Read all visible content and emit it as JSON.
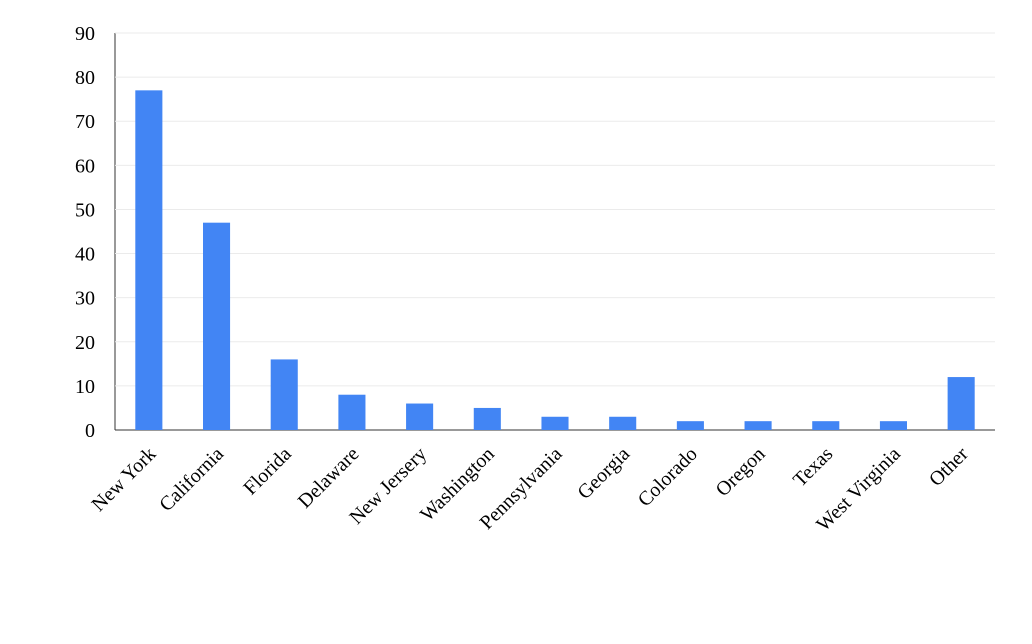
{
  "chart_data": {
    "type": "bar",
    "categories": [
      "New York",
      "California",
      "Florida",
      "Delaware",
      "New Jersery",
      "Washington",
      "Pennsylvania",
      "Georgia",
      "Colorado",
      "Oregon",
      "Texas",
      "West Virginia",
      "Other"
    ],
    "values": [
      77,
      47,
      16,
      8,
      6,
      5,
      3,
      3,
      2,
      2,
      2,
      2,
      12
    ],
    "color": "#4285f4",
    "ylim": [
      0,
      90
    ],
    "yticks": [
      0,
      10,
      20,
      30,
      40,
      50,
      60,
      70,
      80,
      90
    ],
    "grid": true
  }
}
